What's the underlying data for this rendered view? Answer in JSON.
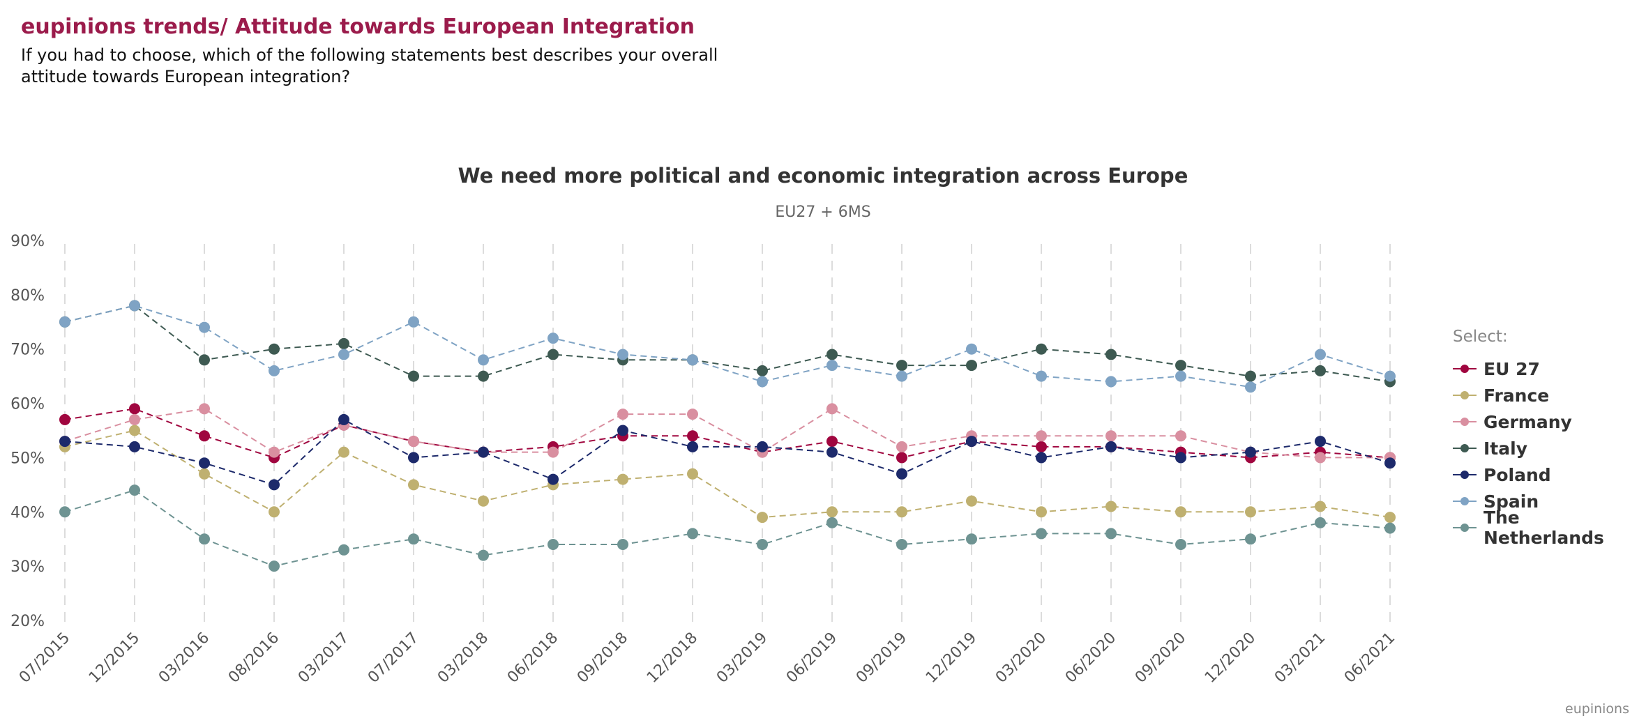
{
  "header": {
    "title": "eupinions trends/ Attitude towards European Integration",
    "question": "If you had to choose, which of the following statements best describes your overall attitude towards European integration?"
  },
  "legend": {
    "title": "Select:"
  },
  "credit": "eupinions",
  "chart_data": {
    "type": "line",
    "title": "We need more political and economic integration across Europe",
    "subtitle": "EU27 + 6MS",
    "xlabel": "",
    "ylabel": "",
    "ylim": [
      20,
      90
    ],
    "yticks": [
      "20%",
      "30%",
      "40%",
      "50%",
      "60%",
      "70%",
      "80%",
      "90%"
    ],
    "categories": [
      "07/2015",
      "12/2015",
      "03/2016",
      "08/2016",
      "03/2017",
      "07/2017",
      "03/2018",
      "06/2018",
      "09/2018",
      "12/2018",
      "03/2019",
      "06/2019",
      "09/2019",
      "12/2019",
      "03/2020",
      "06/2020",
      "09/2020",
      "12/2020",
      "03/2021",
      "06/2021"
    ],
    "legend_position": "right",
    "series": [
      {
        "name": "EU 27",
        "color": "#a0063f",
        "values": [
          57,
          59,
          54,
          50,
          56,
          53,
          51,
          52,
          54,
          54,
          51,
          53,
          50,
          53,
          52,
          52,
          51,
          50,
          51,
          50
        ]
      },
      {
        "name": "France",
        "color": "#bfb070",
        "values": [
          52,
          55,
          47,
          40,
          51,
          45,
          42,
          45,
          46,
          47,
          39,
          40,
          40,
          42,
          40,
          41,
          40,
          40,
          41,
          39
        ]
      },
      {
        "name": "Germany",
        "color": "#d98fa0",
        "values": [
          53,
          57,
          59,
          51,
          56,
          53,
          51,
          51,
          58,
          58,
          51,
          59,
          52,
          54,
          54,
          54,
          54,
          51,
          50,
          50
        ]
      },
      {
        "name": "Italy",
        "color": "#3e5a52",
        "values": [
          75,
          78,
          68,
          70,
          71,
          65,
          65,
          69,
          68,
          68,
          66,
          69,
          67,
          67,
          70,
          69,
          67,
          65,
          66,
          64
        ]
      },
      {
        "name": "Poland",
        "color": "#1d2a6b",
        "values": [
          53,
          52,
          49,
          45,
          57,
          50,
          51,
          46,
          55,
          52,
          52,
          51,
          47,
          53,
          50,
          52,
          50,
          51,
          53,
          49
        ]
      },
      {
        "name": "Spain",
        "color": "#7fa3c4",
        "values": [
          75,
          78,
          74,
          66,
          69,
          75,
          68,
          72,
          69,
          68,
          64,
          67,
          65,
          70,
          65,
          64,
          65,
          63,
          69,
          65
        ]
      },
      {
        "name": "The Netherlands",
        "color": "#6e9392",
        "values": [
          40,
          44,
          35,
          30,
          33,
          35,
          32,
          34,
          34,
          36,
          34,
          38,
          34,
          35,
          36,
          36,
          34,
          35,
          38,
          37
        ]
      }
    ]
  }
}
